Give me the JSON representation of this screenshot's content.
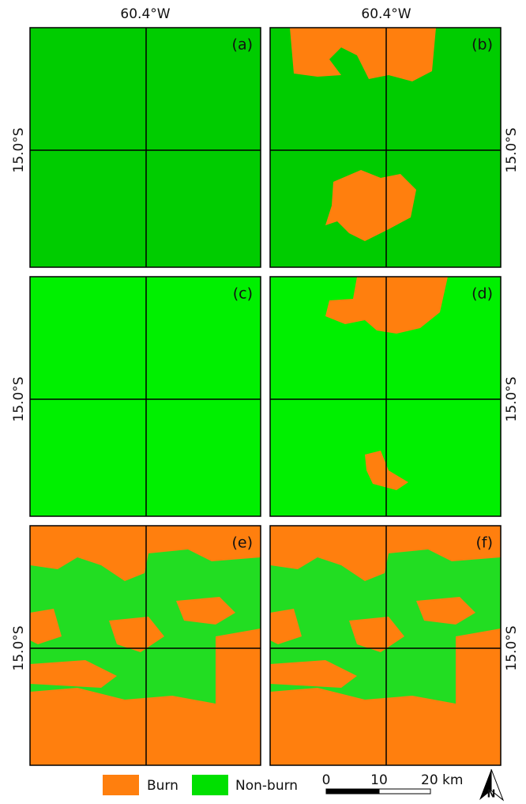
{
  "top_labels": [
    "60.4°W",
    "60.4°W"
  ],
  "panels": [
    {
      "label": "(a)",
      "lat_label": "15.0°S"
    },
    {
      "label": "(b)",
      "lat_label": "15.0°S"
    },
    {
      "label": "(c)",
      "lat_label": "15.0°S"
    },
    {
      "label": "(d)",
      "lat_label": "15.0°S"
    },
    {
      "label": "(e)",
      "lat_label": "15.0°S"
    },
    {
      "label": "(f)",
      "lat_label": "15.0°S"
    }
  ],
  "legend": {
    "items": [
      "Burn",
      "Non-burn"
    ]
  },
  "scale_bar": {
    "labels": [
      "0",
      "10",
      "20 km"
    ]
  }
}
